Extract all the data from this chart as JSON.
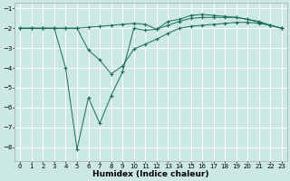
{
  "xlabel": "Humidex (Indice chaleur)",
  "bg_color": "#cbe8e3",
  "line_color": "#1a6b5a",
  "grid_color": "#ffffff",
  "xlim": [
    -0.5,
    23.5
  ],
  "ylim": [
    -8.7,
    -0.7
  ],
  "yticks": [
    -8,
    -7,
    -6,
    -5,
    -4,
    -3,
    -2,
    -1
  ],
  "xticks": [
    0,
    1,
    2,
    3,
    4,
    5,
    6,
    7,
    8,
    9,
    10,
    11,
    12,
    13,
    14,
    15,
    16,
    17,
    18,
    19,
    20,
    21,
    22,
    23
  ],
  "line1_x": [
    0,
    1,
    2,
    3,
    4,
    5,
    6,
    7,
    8,
    9,
    10,
    11,
    12,
    13,
    14,
    15,
    16,
    17,
    18,
    19,
    20,
    21,
    22,
    23
  ],
  "line1_y": [
    -2.0,
    -2.0,
    -2.0,
    -2.0,
    -2.0,
    -2.0,
    -1.95,
    -1.9,
    -1.85,
    -1.8,
    -1.75,
    -1.8,
    -2.05,
    -1.85,
    -1.65,
    -1.5,
    -1.45,
    -1.45,
    -1.45,
    -1.45,
    -1.55,
    -1.7,
    -1.85,
    -2.0
  ],
  "line2_x": [
    0,
    1,
    2,
    3,
    4,
    5,
    6,
    7,
    8,
    9,
    10,
    11,
    12,
    13,
    14,
    15,
    16,
    17,
    18,
    19,
    20,
    21,
    22,
    23
  ],
  "line2_y": [
    -2.0,
    -2.0,
    -2.0,
    -2.0,
    -4.0,
    -8.1,
    -5.5,
    -6.8,
    -5.4,
    -4.2,
    -2.0,
    -2.1,
    -2.05,
    -1.65,
    -1.55,
    -1.35,
    -1.3,
    -1.35,
    -1.4,
    -1.45,
    -1.55,
    -1.65,
    -1.85,
    -2.0
  ],
  "line3_x": [
    0,
    1,
    2,
    3,
    4,
    5,
    6,
    7,
    8,
    9,
    10,
    11,
    12,
    13,
    14,
    15,
    16,
    17,
    18,
    19,
    20,
    21,
    22,
    23
  ],
  "line3_y": [
    -2.0,
    -2.0,
    -2.0,
    -2.0,
    -2.0,
    -2.0,
    -3.1,
    -3.6,
    -4.3,
    -3.9,
    -3.05,
    -2.8,
    -2.55,
    -2.25,
    -2.0,
    -1.9,
    -1.85,
    -1.8,
    -1.75,
    -1.7,
    -1.7,
    -1.75,
    -1.85,
    -2.0
  ],
  "tick_fontsize": 5.0,
  "xlabel_fontsize": 6.5
}
